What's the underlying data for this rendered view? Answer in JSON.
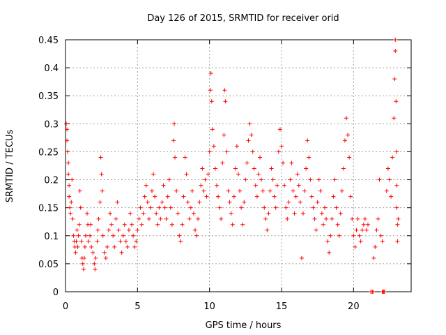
{
  "chart_data": {
    "type": "scatter",
    "title": "Day 126 of 2015, SRMTID for receiver orid",
    "xlabel": "GPS time / hours",
    "ylabel": "SRMTID / TECUs",
    "xlim": [
      0,
      24
    ],
    "ylim": [
      0,
      0.45
    ],
    "x_ticks": [
      0,
      5,
      10,
      15,
      20
    ],
    "x_tick_labels": [
      "0",
      "5",
      "10",
      "15",
      "20"
    ],
    "y_ticks": [
      0,
      0.05,
      0.1,
      0.15,
      0.2,
      0.25,
      0.3,
      0.35,
      0.4,
      0.45
    ],
    "y_tick_labels": [
      "0",
      "0.05",
      "0.1",
      "0.15",
      "0.2",
      "0.25",
      "0.3",
      "0.35",
      "0.4",
      "0.45"
    ],
    "grid": true,
    "marker": "+",
    "color": "#ff0000",
    "series": [
      {
        "name": "SRMTID",
        "points": [
          [
            0.05,
            0.3
          ],
          [
            0.1,
            0.29
          ],
          [
            0.1,
            0.27
          ],
          [
            0.15,
            0.25
          ],
          [
            0.2,
            0.23
          ],
          [
            0.2,
            0.21
          ],
          [
            0.25,
            0.19
          ],
          [
            0.25,
            0.17
          ],
          [
            0.3,
            0.15
          ],
          [
            0.35,
            0.14
          ],
          [
            0.4,
            0.16
          ],
          [
            0.45,
            0.2
          ],
          [
            0.5,
            0.13
          ],
          [
            0.55,
            0.1
          ],
          [
            0.6,
            0.09
          ],
          [
            0.65,
            0.08
          ],
          [
            0.7,
            0.07
          ],
          [
            0.75,
            0.09
          ],
          [
            0.8,
            0.11
          ],
          [
            0.85,
            0.08
          ],
          [
            0.9,
            0.1
          ],
          [
            0.95,
            0.12
          ],
          [
            1.0,
            0.18
          ],
          [
            1.05,
            0.15
          ],
          [
            1.1,
            0.09
          ],
          [
            1.15,
            0.06
          ],
          [
            1.2,
            0.05
          ],
          [
            1.25,
            0.04
          ],
          [
            1.3,
            0.06
          ],
          [
            1.35,
            0.08
          ],
          [
            1.4,
            0.1
          ],
          [
            1.5,
            0.14
          ],
          [
            1.55,
            0.12
          ],
          [
            1.6,
            0.09
          ],
          [
            1.7,
            0.1
          ],
          [
            1.75,
            0.12
          ],
          [
            1.8,
            0.08
          ],
          [
            1.9,
            0.07
          ],
          [
            2.0,
            0.05
          ],
          [
            2.05,
            0.04
          ],
          [
            2.1,
            0.06
          ],
          [
            2.2,
            0.09
          ],
          [
            2.25,
            0.11
          ],
          [
            2.3,
            0.13
          ],
          [
            2.4,
            0.16
          ],
          [
            2.45,
            0.24
          ],
          [
            2.5,
            0.21
          ],
          [
            2.55,
            0.18
          ],
          [
            2.6,
            0.1
          ],
          [
            2.7,
            0.07
          ],
          [
            2.8,
            0.06
          ],
          [
            2.9,
            0.08
          ],
          [
            3.0,
            0.11
          ],
          [
            3.1,
            0.14
          ],
          [
            3.2,
            0.12
          ],
          [
            3.3,
            0.1
          ],
          [
            3.4,
            0.08
          ],
          [
            3.5,
            0.13
          ],
          [
            3.6,
            0.16
          ],
          [
            3.7,
            0.11
          ],
          [
            3.8,
            0.09
          ],
          [
            3.9,
            0.07
          ],
          [
            4.0,
            0.1
          ],
          [
            4.1,
            0.12
          ],
          [
            4.2,
            0.09
          ],
          [
            4.3,
            0.08
          ],
          [
            4.4,
            0.11
          ],
          [
            4.5,
            0.14
          ],
          [
            4.6,
            0.12
          ],
          [
            4.7,
            0.1
          ],
          [
            4.8,
            0.08
          ],
          [
            4.9,
            0.09
          ],
          [
            5.0,
            0.11
          ],
          [
            5.1,
            0.13
          ],
          [
            5.2,
            0.15
          ],
          [
            5.3,
            0.12
          ],
          [
            5.4,
            0.14
          ],
          [
            5.5,
            0.17
          ],
          [
            5.6,
            0.19
          ],
          [
            5.7,
            0.16
          ],
          [
            5.8,
            0.13
          ],
          [
            5.9,
            0.15
          ],
          [
            6.0,
            0.18
          ],
          [
            6.1,
            0.21
          ],
          [
            6.2,
            0.17
          ],
          [
            6.3,
            0.14
          ],
          [
            6.4,
            0.12
          ],
          [
            6.5,
            0.15
          ],
          [
            6.6,
            0.13
          ],
          [
            6.7,
            0.16
          ],
          [
            6.8,
            0.19
          ],
          [
            6.9,
            0.15
          ],
          [
            7.0,
            0.13
          ],
          [
            7.1,
            0.17
          ],
          [
            7.2,
            0.2
          ],
          [
            7.3,
            0.15
          ],
          [
            7.4,
            0.12
          ],
          [
            7.5,
            0.27
          ],
          [
            7.55,
            0.3
          ],
          [
            7.6,
            0.24
          ],
          [
            7.7,
            0.18
          ],
          [
            7.8,
            0.14
          ],
          [
            7.9,
            0.1
          ],
          [
            8.0,
            0.09
          ],
          [
            8.1,
            0.12
          ],
          [
            8.2,
            0.17
          ],
          [
            8.3,
            0.24
          ],
          [
            8.4,
            0.21
          ],
          [
            8.5,
            0.16
          ],
          [
            8.6,
            0.13
          ],
          [
            8.7,
            0.15
          ],
          [
            8.8,
            0.18
          ],
          [
            8.9,
            0.14
          ],
          [
            9.0,
            0.11
          ],
          [
            9.1,
            0.1
          ],
          [
            9.2,
            0.13
          ],
          [
            9.3,
            0.16
          ],
          [
            9.4,
            0.19
          ],
          [
            9.5,
            0.22
          ],
          [
            9.6,
            0.18
          ],
          [
            9.7,
            0.2
          ],
          [
            9.8,
            0.17
          ],
          [
            9.9,
            0.21
          ],
          [
            10.0,
            0.25
          ],
          [
            10.05,
            0.36
          ],
          [
            10.1,
            0.39
          ],
          [
            10.15,
            0.34
          ],
          [
            10.2,
            0.29
          ],
          [
            10.3,
            0.26
          ],
          [
            10.4,
            0.22
          ],
          [
            10.5,
            0.19
          ],
          [
            10.6,
            0.17
          ],
          [
            10.7,
            0.15
          ],
          [
            10.8,
            0.13
          ],
          [
            10.9,
            0.23
          ],
          [
            11.0,
            0.28
          ],
          [
            11.05,
            0.36
          ],
          [
            11.1,
            0.34
          ],
          [
            11.2,
            0.25
          ],
          [
            11.3,
            0.18
          ],
          [
            11.4,
            0.16
          ],
          [
            11.5,
            0.14
          ],
          [
            11.6,
            0.12
          ],
          [
            11.7,
            0.17
          ],
          [
            11.8,
            0.22
          ],
          [
            11.9,
            0.26
          ],
          [
            12.0,
            0.21
          ],
          [
            12.1,
            0.18
          ],
          [
            12.2,
            0.15
          ],
          [
            12.3,
            0.12
          ],
          [
            12.4,
            0.16
          ],
          [
            12.5,
            0.2
          ],
          [
            12.6,
            0.23
          ],
          [
            12.7,
            0.27
          ],
          [
            12.8,
            0.3
          ],
          [
            12.9,
            0.28
          ],
          [
            13.0,
            0.25
          ],
          [
            13.1,
            0.22
          ],
          [
            13.2,
            0.19
          ],
          [
            13.3,
            0.17
          ],
          [
            13.4,
            0.21
          ],
          [
            13.5,
            0.24
          ],
          [
            13.6,
            0.2
          ],
          [
            13.7,
            0.18
          ],
          [
            13.8,
            0.15
          ],
          [
            13.9,
            0.13
          ],
          [
            14.0,
            0.11
          ],
          [
            14.1,
            0.14
          ],
          [
            14.2,
            0.18
          ],
          [
            14.3,
            0.22
          ],
          [
            14.4,
            0.2
          ],
          [
            14.5,
            0.17
          ],
          [
            14.6,
            0.15
          ],
          [
            14.7,
            0.19
          ],
          [
            14.8,
            0.25
          ],
          [
            14.9,
            0.29
          ],
          [
            15.0,
            0.26
          ],
          [
            15.1,
            0.23
          ],
          [
            15.2,
            0.19
          ],
          [
            15.3,
            0.15
          ],
          [
            15.4,
            0.13
          ],
          [
            15.5,
            0.16
          ],
          [
            15.6,
            0.2
          ],
          [
            15.7,
            0.23
          ],
          [
            15.8,
            0.18
          ],
          [
            15.9,
            0.14
          ],
          [
            16.0,
            0.17
          ],
          [
            16.1,
            0.21
          ],
          [
            16.2,
            0.19
          ],
          [
            16.3,
            0.16
          ],
          [
            16.4,
            0.06
          ],
          [
            16.5,
            0.14
          ],
          [
            16.6,
            0.18
          ],
          [
            16.7,
            0.22
          ],
          [
            16.8,
            0.27
          ],
          [
            16.9,
            0.24
          ],
          [
            17.0,
            0.2
          ],
          [
            17.1,
            0.17
          ],
          [
            17.2,
            0.15
          ],
          [
            17.3,
            0.13
          ],
          [
            17.4,
            0.11
          ],
          [
            17.5,
            0.16
          ],
          [
            17.6,
            0.2
          ],
          [
            17.7,
            0.18
          ],
          [
            17.8,
            0.14
          ],
          [
            17.9,
            0.12
          ],
          [
            18.0,
            0.15
          ],
          [
            18.1,
            0.13
          ],
          [
            18.2,
            0.09
          ],
          [
            18.3,
            0.07
          ],
          [
            18.4,
            0.1
          ],
          [
            18.5,
            0.13
          ],
          [
            18.6,
            0.17
          ],
          [
            18.7,
            0.2
          ],
          [
            18.8,
            0.15
          ],
          [
            18.9,
            0.12
          ],
          [
            19.0,
            0.1
          ],
          [
            19.1,
            0.14
          ],
          [
            19.2,
            0.18
          ],
          [
            19.3,
            0.22
          ],
          [
            19.4,
            0.27
          ],
          [
            19.5,
            0.31
          ],
          [
            19.6,
            0.28
          ],
          [
            19.7,
            0.24
          ],
          [
            19.8,
            0.17
          ],
          [
            19.9,
            0.13
          ],
          [
            20.0,
            0.1
          ],
          [
            20.1,
            0.08
          ],
          [
            20.2,
            0.11
          ],
          [
            20.3,
            0.13
          ],
          [
            20.4,
            0.1
          ],
          [
            20.5,
            0.09
          ],
          [
            20.6,
            0.11
          ],
          [
            20.7,
            0.12
          ],
          [
            20.8,
            0.13
          ],
          [
            20.9,
            0.11
          ],
          [
            21.0,
            0.12
          ],
          [
            21.4,
            0.06
          ],
          [
            21.5,
            0.08
          ],
          [
            21.6,
            0.11
          ],
          [
            21.7,
            0.13
          ],
          [
            21.8,
            0.2
          ],
          [
            21.9,
            0.1
          ],
          [
            22.0,
            0.09
          ],
          [
            22.3,
            0.18
          ],
          [
            22.4,
            0.22
          ],
          [
            22.5,
            0.2
          ],
          [
            22.6,
            0.17
          ],
          [
            22.7,
            0.24
          ],
          [
            22.8,
            0.31
          ],
          [
            22.85,
            0.38
          ],
          [
            22.9,
            0.43
          ],
          [
            22.9,
            0.45
          ],
          [
            22.95,
            0.34
          ],
          [
            23.0,
            0.25
          ],
          [
            23.0,
            0.19
          ],
          [
            23.0,
            0.15
          ],
          [
            23.05,
            0.12
          ],
          [
            23.05,
            0.09
          ],
          [
            23.1,
            0.13
          ],
          [
            21.2,
            0.0
          ],
          [
            21.3,
            0.0
          ],
          [
            21.35,
            0.0
          ],
          [
            22.0,
            0.0
          ],
          [
            22.05,
            0.0
          ],
          [
            22.1,
            0.0
          ],
          [
            22.15,
            0.0
          ]
        ]
      }
    ]
  }
}
